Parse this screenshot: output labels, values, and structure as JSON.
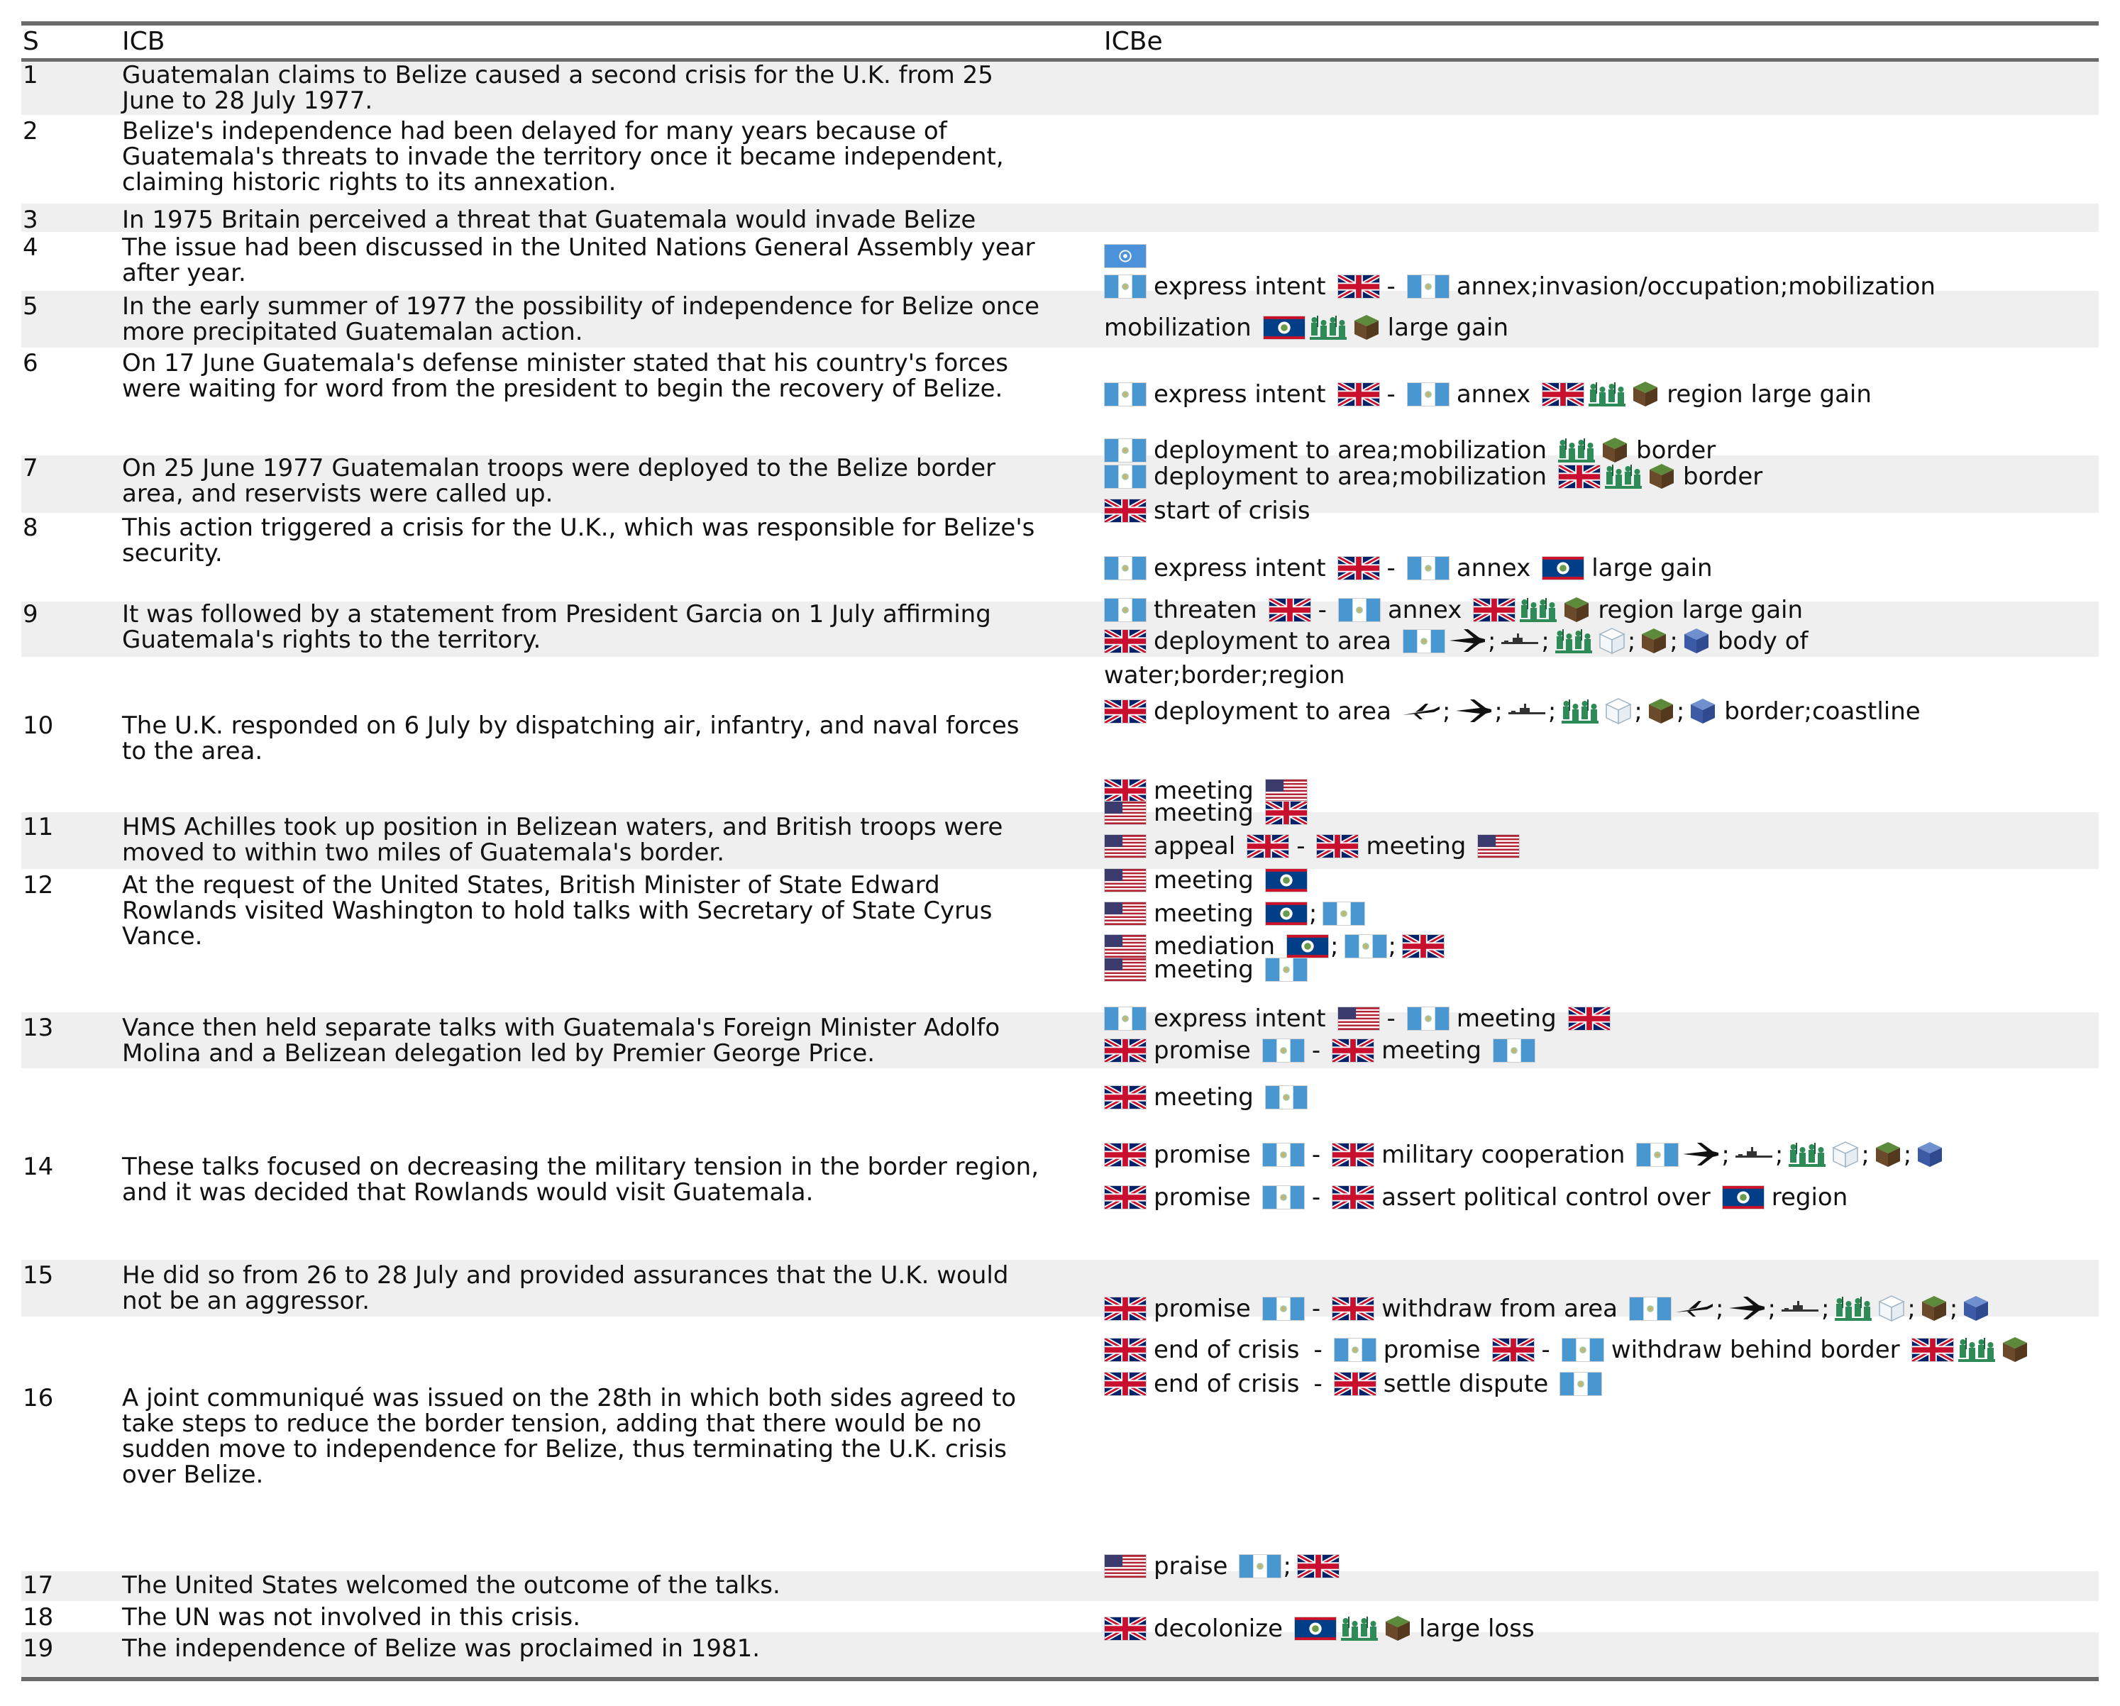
{
  "header": {
    "s": "S",
    "icb": "ICB",
    "icbe": "ICBe"
  },
  "rows": [
    {
      "s": "1",
      "icb": "Guatemalan claims to Belize caused a second crisis for the U.K. from 25\nJune to 28 July 1977."
    },
    {
      "s": "2",
      "icb": "Belize's independence had been delayed for many years because of\nGuatemala's threats to invade the territory once it became independent,\nclaiming historic rights to its annexation."
    },
    {
      "s": "3",
      "icb": "In 1975 Britain perceived a threat that Guatemala would invade Belize"
    },
    {
      "s": "4",
      "icb": "The issue had been discussed in the United Nations General Assembly year\nafter year."
    },
    {
      "s": "5",
      "icb": "In the early summer of 1977 the possibility of independence for Belize once\nmore precipitated Guatemalan action."
    },
    {
      "s": "6",
      "icb": "On 17 June Guatemala's defense minister stated that his country's forces\nwere waiting for word from the president to begin the recovery of Belize."
    },
    {
      "s": "7",
      "icb": "On 25 June 1977 Guatemalan troops were deployed to the Belize border\narea, and reservists were called up."
    },
    {
      "s": "8",
      "icb": "This action triggered a crisis for the U.K., which was responsible for Belize's\nsecurity."
    },
    {
      "s": "9",
      "icb": "It was followed by a statement from President Garcia on 1 July affirming\nGuatemala's rights to the territory."
    },
    {
      "s": "10",
      "icb": "The U.K. responded on 6 July by dispatching air, infantry, and naval forces\nto the area."
    },
    {
      "s": "11",
      "icb": "HMS Achilles took up position in Belizean waters, and British troops were\nmoved to within two miles of Guatemala's border."
    },
    {
      "s": "12",
      "icb": "At the request of the United States, British Minister of State Edward\nRowlands visited Washington to hold talks with Secretary of State Cyrus\nVance."
    },
    {
      "s": "13",
      "icb": "Vance then held separate talks with Guatemala's Foreign Minister Adolfo\nMolina and a Belizean delegation led by Premier George Price."
    },
    {
      "s": "14",
      "icb": "These talks focused on decreasing the military tension in the border region,\nand it was decided that Rowlands would visit Guatemala."
    },
    {
      "s": "15",
      "icb": "He did so from 26 to 28 July and provided assurances that the U.K. would\nnot be an aggressor."
    },
    {
      "s": "16",
      "icb": "A joint communiqué was issued on the 28th in which both sides agreed to\ntake steps to reduce the border tension, adding that there would be no\nsudden move to independence for Belize, thus terminating the U.K. crisis\nover Belize."
    },
    {
      "s": "17",
      "icb": "The United States welcomed the outcome of the talks."
    },
    {
      "s": "18",
      "icb": "The UN was not involved in this crisis."
    },
    {
      "s": "19",
      "icb": "The independence of Belize was proclaimed in 1981."
    }
  ],
  "icbe_lines": [
    {
      "row": "4",
      "tokens": [
        {
          "t": "flag",
          "v": "un"
        }
      ]
    },
    {
      "row": "6",
      "tokens": [
        {
          "t": "flag",
          "v": "gt"
        },
        {
          "t": "text",
          "v": "express intent"
        },
        {
          "t": "flag",
          "v": "uk"
        },
        {
          "t": "sym",
          "v": "-"
        },
        {
          "t": "flag",
          "v": "gt"
        },
        {
          "t": "text",
          "v": "annex;invasion/occupation;mobilization"
        }
      ]
    },
    {
      "row": "6",
      "tokens": [
        {
          "t": "text",
          "v": "mobilization"
        },
        {
          "t": "flag",
          "v": "bz"
        },
        {
          "t": "icon",
          "v": "soldiers"
        },
        {
          "t": "icon",
          "v": "land"
        },
        {
          "t": "text",
          "v": "large gain"
        }
      ]
    },
    {
      "row": "6",
      "tokens": [
        {
          "t": "flag",
          "v": "gt"
        },
        {
          "t": "text",
          "v": "express intent"
        },
        {
          "t": "flag",
          "v": "uk"
        },
        {
          "t": "sym",
          "v": "-"
        },
        {
          "t": "flag",
          "v": "gt"
        },
        {
          "t": "text",
          "v": "annex"
        },
        {
          "t": "flag",
          "v": "uk"
        },
        {
          "t": "icon",
          "v": "soldiers"
        },
        {
          "t": "icon",
          "v": "land"
        },
        {
          "t": "text",
          "v": "region large gain"
        }
      ]
    },
    {
      "row": "7",
      "tokens": [
        {
          "t": "flag",
          "v": "gt"
        },
        {
          "t": "text",
          "v": "deployment to area;mobilization"
        },
        {
          "t": "icon",
          "v": "soldiers"
        },
        {
          "t": "icon",
          "v": "land"
        },
        {
          "t": "text",
          "v": "border"
        }
      ]
    },
    {
      "row": "7",
      "tokens": [
        {
          "t": "flag",
          "v": "gt"
        },
        {
          "t": "text",
          "v": "deployment to area;mobilization"
        },
        {
          "t": "flag",
          "v": "uk"
        },
        {
          "t": "icon",
          "v": "soldiers"
        },
        {
          "t": "icon",
          "v": "land"
        },
        {
          "t": "text",
          "v": "border"
        }
      ]
    },
    {
      "row": "8",
      "tokens": [
        {
          "t": "flag",
          "v": "uk"
        },
        {
          "t": "text",
          "v": "start of crisis"
        }
      ]
    },
    {
      "row": "9",
      "tokens": [
        {
          "t": "flag",
          "v": "gt"
        },
        {
          "t": "text",
          "v": "express intent"
        },
        {
          "t": "flag",
          "v": "uk"
        },
        {
          "t": "sym",
          "v": "-"
        },
        {
          "t": "flag",
          "v": "gt"
        },
        {
          "t": "text",
          "v": "annex"
        },
        {
          "t": "flag",
          "v": "bz"
        },
        {
          "t": "text",
          "v": "large gain"
        }
      ]
    },
    {
      "row": "9",
      "tokens": [
        {
          "t": "flag",
          "v": "gt"
        },
        {
          "t": "text",
          "v": "threaten"
        },
        {
          "t": "flag",
          "v": "uk"
        },
        {
          "t": "sym",
          "v": "-"
        },
        {
          "t": "flag",
          "v": "gt"
        },
        {
          "t": "text",
          "v": "annex"
        },
        {
          "t": "flag",
          "v": "uk"
        },
        {
          "t": "icon",
          "v": "soldiers"
        },
        {
          "t": "icon",
          "v": "land"
        },
        {
          "t": "text",
          "v": "region large gain"
        }
      ]
    },
    {
      "row": "10",
      "tokens": [
        {
          "t": "flag",
          "v": "uk"
        },
        {
          "t": "text",
          "v": "deployment to area"
        },
        {
          "t": "flag",
          "v": "gt"
        },
        {
          "t": "icon",
          "v": "jet"
        },
        {
          "t": "sym",
          "v": ";"
        },
        {
          "t": "icon",
          "v": "ship"
        },
        {
          "t": "sym",
          "v": ";"
        },
        {
          "t": "icon",
          "v": "soldiers"
        },
        {
          "t": "icon",
          "v": "cube"
        },
        {
          "t": "sym",
          "v": ";"
        },
        {
          "t": "icon",
          "v": "land"
        },
        {
          "t": "sym",
          "v": ";"
        },
        {
          "t": "icon",
          "v": "water"
        },
        {
          "t": "text",
          "v": "body of"
        }
      ]
    },
    {
      "row": "10",
      "tokens": [
        {
          "t": "text",
          "v": "water;border;region"
        }
      ]
    },
    {
      "row": "10",
      "tokens": [
        {
          "t": "flag",
          "v": "uk"
        },
        {
          "t": "text",
          "v": "deployment to area"
        },
        {
          "t": "icon",
          "v": "plane"
        },
        {
          "t": "sym",
          "v": ";"
        },
        {
          "t": "icon",
          "v": "jet"
        },
        {
          "t": "sym",
          "v": ";"
        },
        {
          "t": "icon",
          "v": "ship"
        },
        {
          "t": "sym",
          "v": ";"
        },
        {
          "t": "icon",
          "v": "soldiers"
        },
        {
          "t": "icon",
          "v": "cube"
        },
        {
          "t": "sym",
          "v": ";"
        },
        {
          "t": "icon",
          "v": "land"
        },
        {
          "t": "sym",
          "v": ";"
        },
        {
          "t": "icon",
          "v": "water"
        },
        {
          "t": "text",
          "v": "border;coastline"
        }
      ]
    },
    {
      "row": "12",
      "tokens": [
        {
          "t": "flag",
          "v": "uk"
        },
        {
          "t": "text",
          "v": "meeting"
        },
        {
          "t": "flag",
          "v": "us"
        }
      ]
    },
    {
      "row": "12",
      "tokens": [
        {
          "t": "flag",
          "v": "us"
        },
        {
          "t": "text",
          "v": "meeting"
        },
        {
          "t": "flag",
          "v": "uk"
        }
      ]
    },
    {
      "row": "12",
      "tokens": [
        {
          "t": "flag",
          "v": "us"
        },
        {
          "t": "text",
          "v": "appeal"
        },
        {
          "t": "flag",
          "v": "uk"
        },
        {
          "t": "sym",
          "v": "-"
        },
        {
          "t": "flag",
          "v": "uk"
        },
        {
          "t": "text",
          "v": "meeting"
        },
        {
          "t": "flag",
          "v": "us"
        }
      ]
    },
    {
      "row": "13",
      "tokens": [
        {
          "t": "flag",
          "v": "us"
        },
        {
          "t": "text",
          "v": "meeting"
        },
        {
          "t": "flag",
          "v": "bz"
        }
      ]
    },
    {
      "row": "13",
      "tokens": [
        {
          "t": "flag",
          "v": "us"
        },
        {
          "t": "text",
          "v": "meeting"
        },
        {
          "t": "flag",
          "v": "bz"
        },
        {
          "t": "sym",
          "v": ";"
        },
        {
          "t": "flag",
          "v": "gt"
        }
      ]
    },
    {
      "row": "13",
      "tokens": [
        {
          "t": "flag",
          "v": "us"
        },
        {
          "t": "text",
          "v": "mediation"
        },
        {
          "t": "flag",
          "v": "bz"
        },
        {
          "t": "sym",
          "v": ";"
        },
        {
          "t": "flag",
          "v": "gt"
        },
        {
          "t": "sym",
          "v": ";"
        },
        {
          "t": "flag",
          "v": "uk"
        }
      ]
    },
    {
      "row": "13",
      "tokens": [
        {
          "t": "flag",
          "v": "us"
        },
        {
          "t": "text",
          "v": "meeting"
        },
        {
          "t": "flag",
          "v": "gt"
        }
      ]
    },
    {
      "row": "14",
      "tokens": [
        {
          "t": "flag",
          "v": "gt"
        },
        {
          "t": "text",
          "v": "express intent"
        },
        {
          "t": "flag",
          "v": "us"
        },
        {
          "t": "sym",
          "v": "-"
        },
        {
          "t": "flag",
          "v": "gt"
        },
        {
          "t": "text",
          "v": "meeting"
        },
        {
          "t": "flag",
          "v": "uk"
        }
      ]
    },
    {
      "row": "14",
      "tokens": [
        {
          "t": "flag",
          "v": "uk"
        },
        {
          "t": "text",
          "v": "promise"
        },
        {
          "t": "flag",
          "v": "gt"
        },
        {
          "t": "sym",
          "v": "-"
        },
        {
          "t": "flag",
          "v": "uk"
        },
        {
          "t": "text",
          "v": "meeting"
        },
        {
          "t": "flag",
          "v": "gt"
        }
      ]
    },
    {
      "row": "15",
      "tokens": [
        {
          "t": "flag",
          "v": "uk"
        },
        {
          "t": "text",
          "v": "meeting"
        },
        {
          "t": "flag",
          "v": "gt"
        }
      ]
    },
    {
      "row": "15",
      "tokens": [
        {
          "t": "flag",
          "v": "uk"
        },
        {
          "t": "text",
          "v": "promise"
        },
        {
          "t": "flag",
          "v": "gt"
        },
        {
          "t": "sym",
          "v": "-"
        },
        {
          "t": "flag",
          "v": "uk"
        },
        {
          "t": "text",
          "v": "military cooperation"
        },
        {
          "t": "flag",
          "v": "gt"
        },
        {
          "t": "icon",
          "v": "jet"
        },
        {
          "t": "sym",
          "v": ";"
        },
        {
          "t": "icon",
          "v": "ship"
        },
        {
          "t": "sym",
          "v": ";"
        },
        {
          "t": "icon",
          "v": "soldiers"
        },
        {
          "t": "icon",
          "v": "cube"
        },
        {
          "t": "sym",
          "v": ";"
        },
        {
          "t": "icon",
          "v": "land"
        },
        {
          "t": "sym",
          "v": ";"
        },
        {
          "t": "icon",
          "v": "water"
        }
      ]
    },
    {
      "row": "16",
      "tokens": [
        {
          "t": "flag",
          "v": "uk"
        },
        {
          "t": "text",
          "v": "promise"
        },
        {
          "t": "flag",
          "v": "gt"
        },
        {
          "t": "sym",
          "v": "-"
        },
        {
          "t": "flag",
          "v": "uk"
        },
        {
          "t": "text",
          "v": "assert political control over"
        },
        {
          "t": "flag",
          "v": "bz"
        },
        {
          "t": "text",
          "v": "region"
        }
      ]
    },
    {
      "row": "16",
      "tokens": [
        {
          "t": "flag",
          "v": "uk"
        },
        {
          "t": "text",
          "v": "promise"
        },
        {
          "t": "flag",
          "v": "gt"
        },
        {
          "t": "sym",
          "v": "-"
        },
        {
          "t": "flag",
          "v": "uk"
        },
        {
          "t": "text",
          "v": "withdraw from area"
        },
        {
          "t": "flag",
          "v": "gt"
        },
        {
          "t": "icon",
          "v": "plane"
        },
        {
          "t": "sym",
          "v": ";"
        },
        {
          "t": "icon",
          "v": "jet"
        },
        {
          "t": "sym",
          "v": ";"
        },
        {
          "t": "icon",
          "v": "ship"
        },
        {
          "t": "sym",
          "v": ";"
        },
        {
          "t": "icon",
          "v": "soldiers"
        },
        {
          "t": "icon",
          "v": "cube"
        },
        {
          "t": "sym",
          "v": ";"
        },
        {
          "t": "icon",
          "v": "land"
        },
        {
          "t": "sym",
          "v": ";"
        },
        {
          "t": "icon",
          "v": "water"
        }
      ]
    },
    {
      "row": "16",
      "tokens": [
        {
          "t": "flag",
          "v": "uk"
        },
        {
          "t": "text",
          "v": "end of crisis"
        },
        {
          "t": "sym",
          "v": "-"
        },
        {
          "t": "flag",
          "v": "gt"
        },
        {
          "t": "text",
          "v": "promise"
        },
        {
          "t": "flag",
          "v": "uk"
        },
        {
          "t": "sym",
          "v": "-"
        },
        {
          "t": "flag",
          "v": "gt"
        },
        {
          "t": "text",
          "v": "withdraw behind border"
        },
        {
          "t": "flag",
          "v": "uk"
        },
        {
          "t": "icon",
          "v": "soldiers"
        },
        {
          "t": "icon",
          "v": "land"
        }
      ]
    },
    {
      "row": "16",
      "tokens": [
        {
          "t": "flag",
          "v": "uk"
        },
        {
          "t": "text",
          "v": "end of crisis"
        },
        {
          "t": "sym",
          "v": "-"
        },
        {
          "t": "flag",
          "v": "uk"
        },
        {
          "t": "text",
          "v": "settle dispute"
        },
        {
          "t": "flag",
          "v": "gt"
        }
      ]
    },
    {
      "row": "17",
      "tokens": [
        {
          "t": "flag",
          "v": "us"
        },
        {
          "t": "text",
          "v": "praise"
        },
        {
          "t": "flag",
          "v": "gt"
        },
        {
          "t": "sym",
          "v": ";"
        },
        {
          "t": "flag",
          "v": "uk"
        }
      ]
    },
    {
      "row": "19",
      "tokens": [
        {
          "t": "flag",
          "v": "uk"
        },
        {
          "t": "text",
          "v": "decolonize"
        },
        {
          "t": "flag",
          "v": "bz"
        },
        {
          "t": "icon",
          "v": "soldiers"
        },
        {
          "t": "icon",
          "v": "land"
        },
        {
          "t": "text",
          "v": "large loss"
        }
      ]
    }
  ]
}
